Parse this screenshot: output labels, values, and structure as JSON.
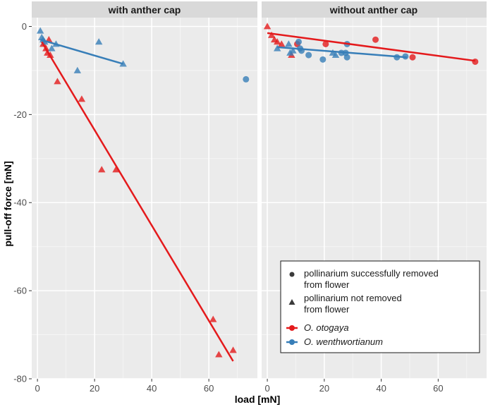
{
  "chart_data": {
    "type": "scatter",
    "xlabel": "load [mN]",
    "ylabel": "pull-off force [mN]",
    "xlim": [
      -2,
      77
    ],
    "ylim": [
      -80,
      2
    ],
    "xticks": [
      0,
      20,
      40,
      60
    ],
    "yticks": [
      0,
      -20,
      -40,
      -60,
      -80
    ],
    "colors": {
      "O. otogaya": "#e41a1c",
      "O. wenthwortianum": "#377eb8"
    },
    "panels": [
      {
        "title": "with anther cap",
        "series": [
          {
            "name": "O. otogaya",
            "color": "#e41a1c",
            "points": [
              {
                "x": 2,
                "y": -4,
                "shape": "triangle"
              },
              {
                "x": 3,
                "y": -5,
                "shape": "triangle"
              },
              {
                "x": 3.5,
                "y": -6,
                "shape": "triangle"
              },
              {
                "x": 4,
                "y": -3,
                "shape": "triangle"
              },
              {
                "x": 4.5,
                "y": -6.5,
                "shape": "triangle"
              },
              {
                "x": 7,
                "y": -12.5,
                "shape": "triangle"
              },
              {
                "x": 15.5,
                "y": -16.5,
                "shape": "triangle"
              },
              {
                "x": 22.5,
                "y": -32.5,
                "shape": "triangle"
              },
              {
                "x": 27.5,
                "y": -32.5,
                "shape": "triangle"
              },
              {
                "x": 61.5,
                "y": -66.5,
                "shape": "triangle"
              },
              {
                "x": 63.5,
                "y": -74.5,
                "shape": "triangle"
              },
              {
                "x": 68.5,
                "y": -73.5,
                "shape": "triangle"
              }
            ],
            "fit": {
              "x0": 1.5,
              "y0": -3.5,
              "x1": 68.5,
              "y1": -76
            }
          },
          {
            "name": "O. wenthwortianum",
            "color": "#377eb8",
            "points": [
              {
                "x": 1,
                "y": -1,
                "shape": "triangle"
              },
              {
                "x": 1.5,
                "y": -2.5,
                "shape": "triangle"
              },
              {
                "x": 2,
                "y": -3,
                "shape": "triangle"
              },
              {
                "x": 2.5,
                "y": -3.5,
                "shape": "triangle"
              },
              {
                "x": 5,
                "y": -5,
                "shape": "triangle"
              },
              {
                "x": 6.5,
                "y": -4,
                "shape": "triangle"
              },
              {
                "x": 14,
                "y": -10,
                "shape": "triangle"
              },
              {
                "x": 21.5,
                "y": -3.5,
                "shape": "triangle"
              },
              {
                "x": 30,
                "y": -8.5,
                "shape": "triangle"
              },
              {
                "x": 73,
                "y": -12,
                "shape": "circle"
              }
            ],
            "fit": {
              "x0": 1,
              "y0": -3,
              "x1": 30,
              "y1": -8.5
            }
          }
        ]
      },
      {
        "title": "without anther cap",
        "series": [
          {
            "name": "O. otogaya",
            "color": "#e41a1c",
            "points": [
              {
                "x": 0,
                "y": 0,
                "shape": "triangle"
              },
              {
                "x": 1.5,
                "y": -2,
                "shape": "triangle"
              },
              {
                "x": 2.5,
                "y": -3,
                "shape": "triangle"
              },
              {
                "x": 3.5,
                "y": -3.5,
                "shape": "triangle"
              },
              {
                "x": 5,
                "y": -4,
                "shape": "triangle"
              },
              {
                "x": 8.5,
                "y": -6.5,
                "shape": "triangle"
              },
              {
                "x": 10.5,
                "y": -4,
                "shape": "circle"
              },
              {
                "x": 20.5,
                "y": -4,
                "shape": "circle"
              },
              {
                "x": 38,
                "y": -3,
                "shape": "circle"
              },
              {
                "x": 51,
                "y": -7,
                "shape": "circle"
              },
              {
                "x": 73,
                "y": -8,
                "shape": "circle"
              }
            ],
            "fit": {
              "x0": 0,
              "y0": -1.5,
              "x1": 73,
              "y1": -7.8
            }
          },
          {
            "name": "O. wenthwortianum",
            "color": "#377eb8",
            "points": [
              {
                "x": 3.5,
                "y": -5,
                "shape": "triangle"
              },
              {
                "x": 7.5,
                "y": -4,
                "shape": "triangle"
              },
              {
                "x": 8,
                "y": -6,
                "shape": "triangle"
              },
              {
                "x": 9,
                "y": -5.5,
                "shape": "triangle"
              },
              {
                "x": 11,
                "y": -3.5,
                "shape": "circle"
              },
              {
                "x": 11.5,
                "y": -5,
                "shape": "circle"
              },
              {
                "x": 12,
                "y": -5.5,
                "shape": "circle"
              },
              {
                "x": 14.5,
                "y": -6.5,
                "shape": "circle"
              },
              {
                "x": 19.5,
                "y": -7.5,
                "shape": "circle"
              },
              {
                "x": 23,
                "y": -6,
                "shape": "triangle"
              },
              {
                "x": 24,
                "y": -6.5,
                "shape": "triangle"
              },
              {
                "x": 26,
                "y": -6,
                "shape": "circle"
              },
              {
                "x": 27.5,
                "y": -6,
                "shape": "circle"
              },
              {
                "x": 28,
                "y": -4,
                "shape": "circle"
              },
              {
                "x": 28,
                "y": -7,
                "shape": "circle"
              },
              {
                "x": 45.5,
                "y": -7,
                "shape": "circle"
              },
              {
                "x": 48.5,
                "y": -6.8,
                "shape": "circle"
              }
            ],
            "fit": {
              "x0": 3.5,
              "y0": -4.7,
              "x1": 49,
              "y1": -7
            }
          }
        ]
      }
    ],
    "legend": {
      "position": "bottom-right",
      "shape_entries": [
        {
          "shape": "circle",
          "line1": "pollinarium successfully removed",
          "line2": "from flower"
        },
        {
          "shape": "triangle",
          "line1": "pollinarium not removed",
          "line2": "from flower"
        }
      ],
      "species_entries": [
        {
          "label": "O. otogaya",
          "color": "#e41a1c"
        },
        {
          "label": "O. wenthwortianum",
          "color": "#377eb8"
        }
      ]
    }
  }
}
